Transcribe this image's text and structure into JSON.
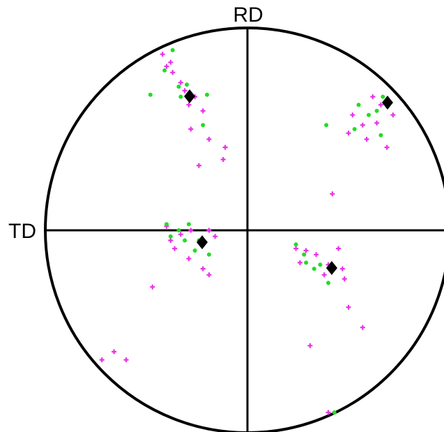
{
  "chart_data": {
    "type": "scatter",
    "y_label": "RD",
    "x_label": "TD",
    "xlim": [
      -1,
      1
    ],
    "ylim": [
      -1,
      1
    ],
    "series": [
      {
        "color": "#e832e8",
        "marker": "plus",
        "x": [
          -0.42,
          -0.4,
          -0.37,
          -0.33,
          -0.31,
          -0.26,
          -0.22,
          -0.28,
          -0.19,
          -0.11,
          -0.24,
          -0.12,
          -0.38,
          -0.29,
          0.52,
          0.57,
          0.64,
          0.69,
          0.59,
          0.66,
          0.72,
          0.5,
          0.42,
          0.62,
          -0.4,
          -0.33,
          -0.28,
          -0.19,
          -0.36,
          -0.29,
          -0.22,
          -0.19,
          -0.47,
          -0.16,
          -0.38,
          0.24,
          0.29,
          0.34,
          0.4,
          0.45,
          0.48,
          0.47,
          0.5,
          0.57,
          0.31,
          0.38,
          0.26,
          -0.72,
          -0.66,
          -0.6,
          0.4
        ],
        "y": [
          0.87,
          0.81,
          0.78,
          0.73,
          0.69,
          0.66,
          0.59,
          0.5,
          0.45,
          0.41,
          0.32,
          0.35,
          0.83,
          0.62,
          0.57,
          0.52,
          0.53,
          0.41,
          0.45,
          0.62,
          0.57,
          0.48,
          0.18,
          0.66,
          0.02,
          -0.02,
          0.0,
          0.0,
          -0.09,
          -0.14,
          -0.19,
          -0.22,
          -0.28,
          -0.03,
          -0.05,
          -0.09,
          -0.1,
          -0.12,
          -0.17,
          -0.09,
          -0.24,
          -0.19,
          -0.38,
          -0.48,
          -0.57,
          -0.22,
          -0.16,
          -0.64,
          -0.6,
          -0.64,
          -0.9
        ]
      },
      {
        "color": "#22dd22",
        "marker": "dot",
        "x": [
          -0.37,
          -0.41,
          -0.34,
          -0.3,
          -0.33,
          -0.2,
          -0.22,
          -0.48,
          0.55,
          0.6,
          0.53,
          0.64,
          0.67,
          0.39,
          0.66,
          -0.4,
          -0.34,
          -0.31,
          -0.38,
          -0.26,
          -0.29,
          -0.19,
          -0.24,
          0.24,
          0.29,
          0.33,
          0.36,
          0.4,
          0.28,
          0.43
        ],
        "y": [
          0.89,
          0.79,
          0.71,
          0.72,
          0.66,
          0.67,
          0.52,
          0.67,
          0.62,
          0.57,
          0.5,
          0.59,
          0.66,
          0.52,
          0.47,
          0.03,
          0.0,
          -0.05,
          -0.03,
          -0.1,
          0.03,
          -0.12,
          -0.05,
          -0.07,
          -0.16,
          -0.19,
          -0.17,
          -0.26,
          -0.12,
          -0.9
        ]
      },
      {
        "color": "#000000",
        "marker": "diamond",
        "x": [
          -0.286,
          0.693,
          -0.224,
          0.417
        ],
        "y": [
          0.662,
          0.631,
          -0.059,
          -0.186
        ]
      }
    ]
  }
}
